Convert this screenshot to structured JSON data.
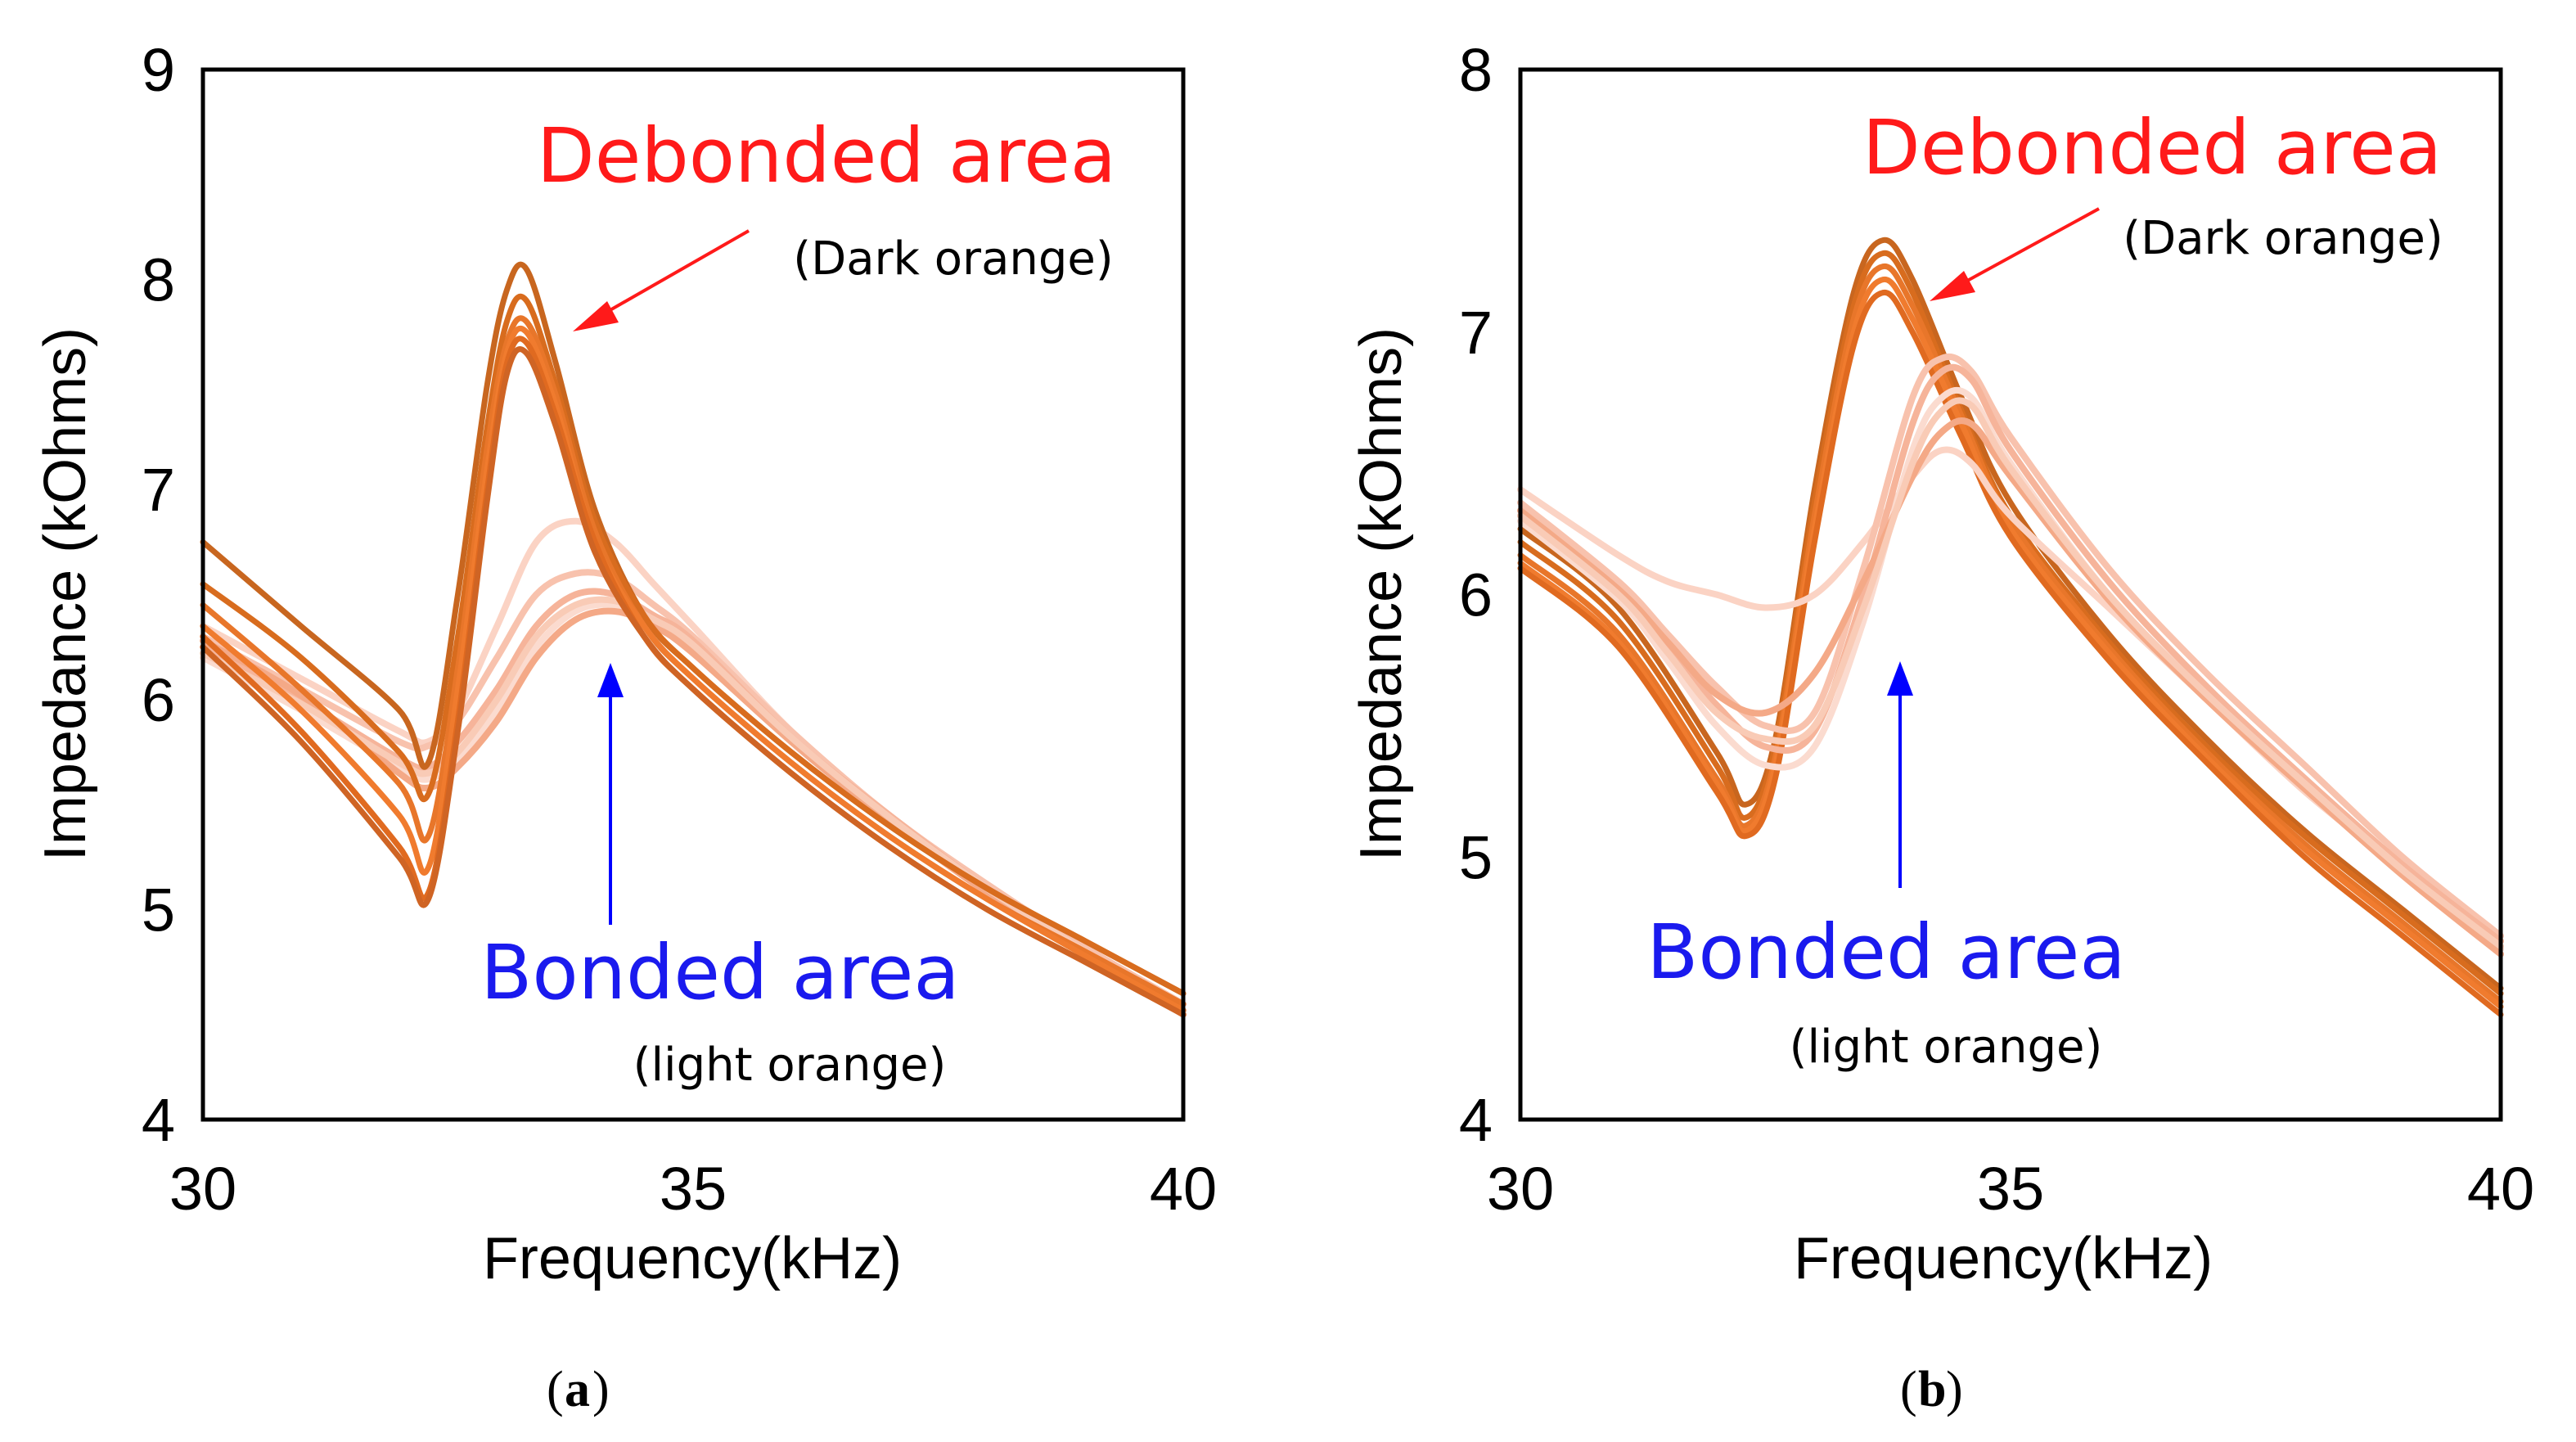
{
  "colors": {
    "dark_orange": [
      "#c8661f",
      "#d86c1e",
      "#e8762a",
      "#f07b2e",
      "#e06a20",
      "#cf6424",
      "#f28040",
      "#b85b20"
    ],
    "light_orange": [
      "#fbd3c4",
      "#f8c2ad",
      "#f6b49a",
      "#fbdbcf",
      "#f4a987",
      "#f9cbb6"
    ],
    "debonded_text": "#ff1a1a",
    "bonded_text": "#1a1aee",
    "arrow_red": "#ff1a1a",
    "arrow_blue": "#0000ff"
  },
  "chart_data": [
    {
      "type": "line",
      "panel_label": "a",
      "xlabel": "Frequency(kHz)",
      "ylabel": "Impedance  (kOhms)",
      "xlim": [
        30,
        40
      ],
      "ylim": [
        4,
        9
      ],
      "xticks": [
        "30",
        "35",
        "40"
      ],
      "yticks": [
        "4",
        "5",
        "6",
        "7",
        "8",
        "9"
      ],
      "annotations": {
        "debonded_title": "Debonded area",
        "debonded_sub": "(Dark orange)",
        "bonded_title": "Bonded area",
        "bonded_sub": "(light orange)"
      },
      "series_groups": [
        {
          "group": "debonded",
          "color_key": "dark_orange",
          "x": [
            30,
            31,
            32,
            32.3,
            32.6,
            32.9,
            33.1,
            33.3,
            33.6,
            34,
            34.5,
            35,
            36,
            37,
            38,
            39,
            40
          ],
          "curves": [
            [
              6.75,
              6.35,
              5.95,
              5.7,
              6.5,
              7.5,
              7.95,
              8.05,
              7.6,
              6.9,
              6.4,
              6.15,
              5.75,
              5.4,
              5.1,
              4.85,
              4.6
            ],
            [
              6.55,
              6.2,
              5.75,
              5.55,
              6.3,
              7.3,
              7.8,
              7.9,
              7.5,
              6.85,
              6.4,
              6.15,
              5.75,
              5.4,
              5.1,
              4.85,
              4.6
            ],
            [
              6.45,
              6.05,
              5.6,
              5.35,
              6.15,
              7.2,
              7.7,
              7.8,
              7.45,
              6.8,
              6.35,
              6.1,
              5.7,
              5.35,
              5.05,
              4.8,
              4.55
            ],
            [
              6.35,
              5.95,
              5.45,
              5.2,
              6.05,
              7.1,
              7.65,
              7.75,
              7.4,
              6.75,
              6.35,
              6.1,
              5.7,
              5.35,
              5.05,
              4.78,
              4.52
            ],
            [
              6.3,
              5.85,
              5.3,
              5.08,
              5.9,
              7.0,
              7.6,
              7.7,
              7.35,
              6.75,
              6.3,
              6.05,
              5.65,
              5.3,
              5.0,
              4.75,
              4.5
            ],
            [
              6.25,
              5.8,
              5.25,
              5.05,
              5.85,
              6.95,
              7.55,
              7.65,
              7.3,
              6.7,
              6.3,
              6.05,
              5.65,
              5.3,
              5.0,
              4.75,
              4.5
            ]
          ]
        },
        {
          "group": "bonded",
          "color_key": "light_orange",
          "x": [
            30,
            31,
            32,
            32.3,
            32.6,
            33,
            33.4,
            33.8,
            34.2,
            34.6,
            35,
            36,
            37,
            38,
            39,
            40
          ],
          "curves": [
            [
              6.35,
              6.1,
              5.85,
              5.8,
              5.95,
              6.35,
              6.75,
              6.85,
              6.75,
              6.55,
              6.35,
              5.85,
              5.45,
              5.12,
              4.82,
              4.55
            ],
            [
              6.3,
              6.05,
              5.8,
              5.78,
              5.9,
              6.2,
              6.5,
              6.6,
              6.58,
              6.45,
              6.3,
              5.85,
              5.45,
              5.12,
              4.82,
              4.55
            ],
            [
              6.25,
              6.0,
              5.72,
              5.68,
              5.8,
              6.05,
              6.35,
              6.5,
              6.5,
              6.4,
              6.28,
              5.82,
              5.45,
              5.1,
              4.8,
              4.52
            ],
            [
              6.2,
              5.95,
              5.68,
              5.62,
              5.72,
              5.95,
              6.25,
              6.42,
              6.45,
              6.38,
              6.25,
              5.8,
              5.42,
              5.08,
              4.78,
              4.5
            ],
            [
              6.28,
              6.02,
              5.65,
              5.58,
              5.68,
              5.9,
              6.2,
              6.38,
              6.42,
              6.35,
              6.22,
              5.8,
              5.42,
              5.08,
              4.78,
              4.5
            ],
            [
              6.22,
              5.98,
              5.7,
              5.65,
              5.75,
              6.0,
              6.3,
              6.45,
              6.47,
              6.38,
              6.26,
              5.82,
              5.44,
              5.1,
              4.8,
              4.52
            ]
          ]
        }
      ]
    },
    {
      "type": "line",
      "panel_label": "b",
      "xlabel": "Frequency(kHz)",
      "ylabel": "Impedance  (kOhms)",
      "xlim": [
        30,
        40
      ],
      "ylim": [
        4,
        8
      ],
      "xticks": [
        "30",
        "35",
        "40"
      ],
      "yticks": [
        "4",
        "5",
        "6",
        "7",
        "8"
      ],
      "annotations": {
        "debonded_title": "Debonded area",
        "debonded_sub": "(Dark orange)",
        "bonded_title": "Bonded area",
        "bonded_sub": "(light orange)"
      },
      "series_groups": [
        {
          "group": "debonded",
          "color_key": "dark_orange",
          "x": [
            30,
            31,
            32,
            32.3,
            32.6,
            33,
            33.4,
            33.7,
            34,
            34.5,
            35,
            36,
            37,
            38,
            39,
            40
          ],
          "curves": [
            [
              6.25,
              5.95,
              5.4,
              5.2,
              5.45,
              6.4,
              7.15,
              7.35,
              7.2,
              6.75,
              6.35,
              5.85,
              5.45,
              5.1,
              4.8,
              4.5
            ],
            [
              6.2,
              5.9,
              5.35,
              5.15,
              5.42,
              6.35,
              7.1,
              7.3,
              7.15,
              6.7,
              6.3,
              5.82,
              5.42,
              5.08,
              4.78,
              4.48
            ],
            [
              6.15,
              5.85,
              5.3,
              5.12,
              5.38,
              6.3,
              7.05,
              7.25,
              7.1,
              6.68,
              6.28,
              5.8,
              5.4,
              5.05,
              4.75,
              4.45
            ],
            [
              6.12,
              5.82,
              5.28,
              5.1,
              5.35,
              6.25,
              7.0,
              7.2,
              7.05,
              6.65,
              6.25,
              5.78,
              5.38,
              5.03,
              4.73,
              4.43
            ],
            [
              6.1,
              5.8,
              5.25,
              5.08,
              5.3,
              6.2,
              6.95,
              7.15,
              7.0,
              6.6,
              6.22,
              5.75,
              5.36,
              5.0,
              4.7,
              4.4
            ]
          ]
        },
        {
          "group": "bonded",
          "color_key": "light_orange",
          "x": [
            30,
            31,
            31.5,
            32,
            32.5,
            33,
            33.5,
            34,
            34.3,
            34.6,
            35,
            36,
            37,
            38,
            39,
            40
          ],
          "curves": [
            [
              6.4,
              6.15,
              6.05,
              6.0,
              5.95,
              6.0,
              6.2,
              6.45,
              6.55,
              6.5,
              6.3,
              5.95,
              5.6,
              5.25,
              4.95,
              4.65
            ],
            [
              6.35,
              6.05,
              5.85,
              5.65,
              5.5,
              5.55,
              6.1,
              6.75,
              6.9,
              6.85,
              6.6,
              6.1,
              5.7,
              5.35,
              5.0,
              4.7
            ],
            [
              6.3,
              6.0,
              5.8,
              5.58,
              5.42,
              5.48,
              6.0,
              6.65,
              6.85,
              6.82,
              6.55,
              6.05,
              5.65,
              5.3,
              4.97,
              4.68
            ],
            [
              6.28,
              5.98,
              5.75,
              5.5,
              5.35,
              5.42,
              5.9,
              6.55,
              6.75,
              6.75,
              6.5,
              6.0,
              5.62,
              5.28,
              4.95,
              4.65
            ],
            [
              6.32,
              6.02,
              5.82,
              5.62,
              5.55,
              5.7,
              6.05,
              6.45,
              6.62,
              6.65,
              6.45,
              5.98,
              5.6,
              5.26,
              4.93,
              4.63
            ],
            [
              6.3,
              6.0,
              5.78,
              5.55,
              5.45,
              5.5,
              5.95,
              6.5,
              6.7,
              6.72,
              6.48,
              6.0,
              5.62,
              5.28,
              4.95,
              4.66
            ]
          ]
        }
      ]
    }
  ]
}
